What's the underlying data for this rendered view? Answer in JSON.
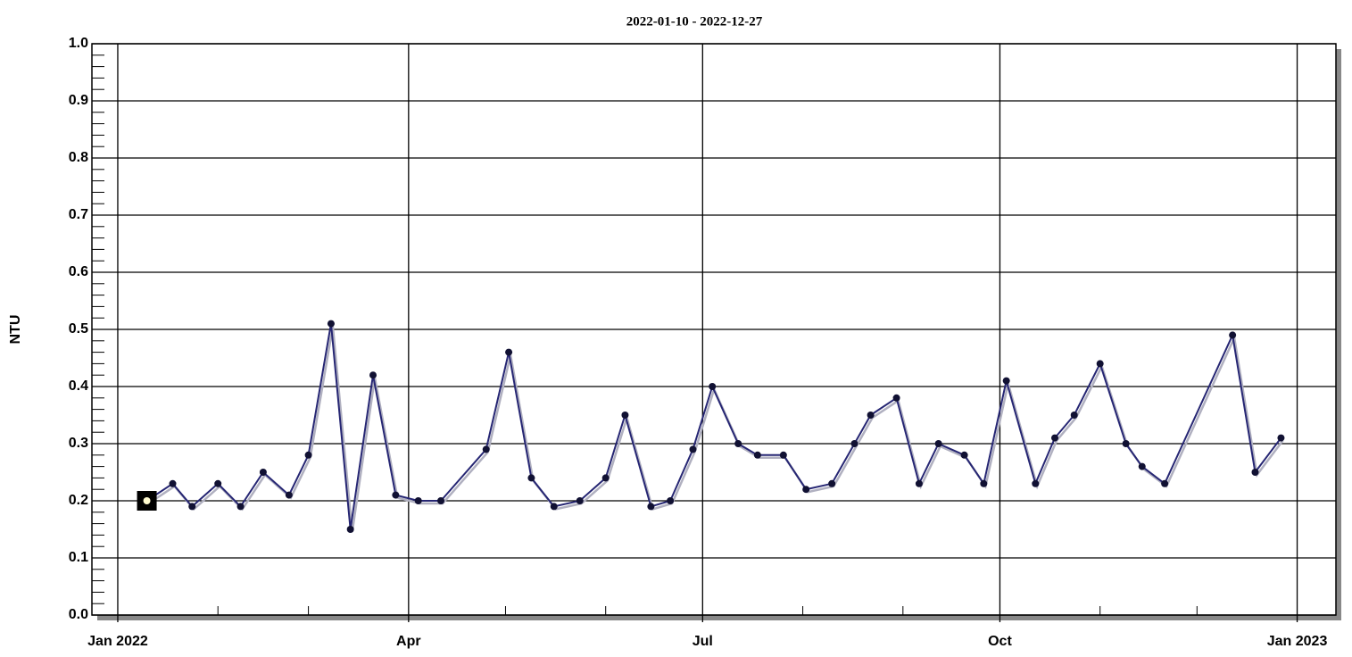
{
  "chart_data": {
    "type": "line",
    "title": "2022-01-10 - 2022-12-27",
    "y_label": "NTU",
    "x": [
      "2022-01-10",
      "2022-01-18",
      "2022-01-24",
      "2022-02-01",
      "2022-02-08",
      "2022-02-15",
      "2022-02-23",
      "2022-03-01",
      "2022-03-08",
      "2022-03-14",
      "2022-03-21",
      "2022-03-28",
      "2022-04-04",
      "2022-04-11",
      "2022-04-25",
      "2022-05-02",
      "2022-05-09",
      "2022-05-16",
      "2022-05-24",
      "2022-06-01",
      "2022-06-07",
      "2022-06-15",
      "2022-06-21",
      "2022-06-28",
      "2022-07-04",
      "2022-07-12",
      "2022-07-18",
      "2022-07-26",
      "2022-08-02",
      "2022-08-10",
      "2022-08-17",
      "2022-08-22",
      "2022-08-30",
      "2022-09-06",
      "2022-09-12",
      "2022-09-20",
      "2022-09-26",
      "2022-10-03",
      "2022-10-12",
      "2022-10-18",
      "2022-10-24",
      "2022-11-01",
      "2022-11-09",
      "2022-11-14",
      "2022-11-21",
      "2022-12-12",
      "2022-12-19",
      "2022-12-27"
    ],
    "series": [
      {
        "color": "#262673",
        "values": [
          0.2,
          0.23,
          0.19,
          0.23,
          0.19,
          0.25,
          0.21,
          0.28,
          0.51,
          0.15,
          0.42,
          0.21,
          0.2,
          0.2,
          0.29,
          0.46,
          0.24,
          0.19,
          0.2,
          0.24,
          0.35,
          0.19,
          0.2,
          0.29,
          0.4,
          0.3,
          0.28,
          0.28,
          0.22,
          0.23,
          0.3,
          0.35,
          0.38,
          0.23,
          0.3,
          0.28,
          0.23,
          0.41,
          0.23,
          0.31,
          0.35,
          0.44,
          0.3,
          0.26,
          0.23,
          0.49,
          0.25,
          0.31
        ]
      }
    ],
    "selected": 0,
    "xlim": [
      "2021-12-24",
      "2023-01-13"
    ],
    "xticks": [
      {
        "value": "2022-01-01",
        "label": "Jan 2022"
      },
      {
        "value": "2022-04-01",
        "label": "Apr"
      },
      {
        "value": "2022-07-01",
        "label": "Jul"
      },
      {
        "value": "2022-10-01",
        "label": "Oct"
      },
      {
        "value": "2023-01-01",
        "label": "Jan 2023"
      }
    ],
    "xminor_ticks": [
      "2022-02-01",
      "2022-03-01",
      "2022-05-01",
      "2022-06-01",
      "2022-08-01",
      "2022-09-01",
      "2022-11-01",
      "2022-12-01"
    ],
    "ylim": [
      0,
      1
    ],
    "yticks": [
      {
        "value": 0,
        "label": "0.0"
      },
      0.1,
      0.2,
      0.3,
      0.4,
      0.5,
      0.6,
      0.7,
      0.8,
      0.9,
      {
        "value": 1,
        "label": "1.0"
      }
    ],
    "grid": true
  }
}
